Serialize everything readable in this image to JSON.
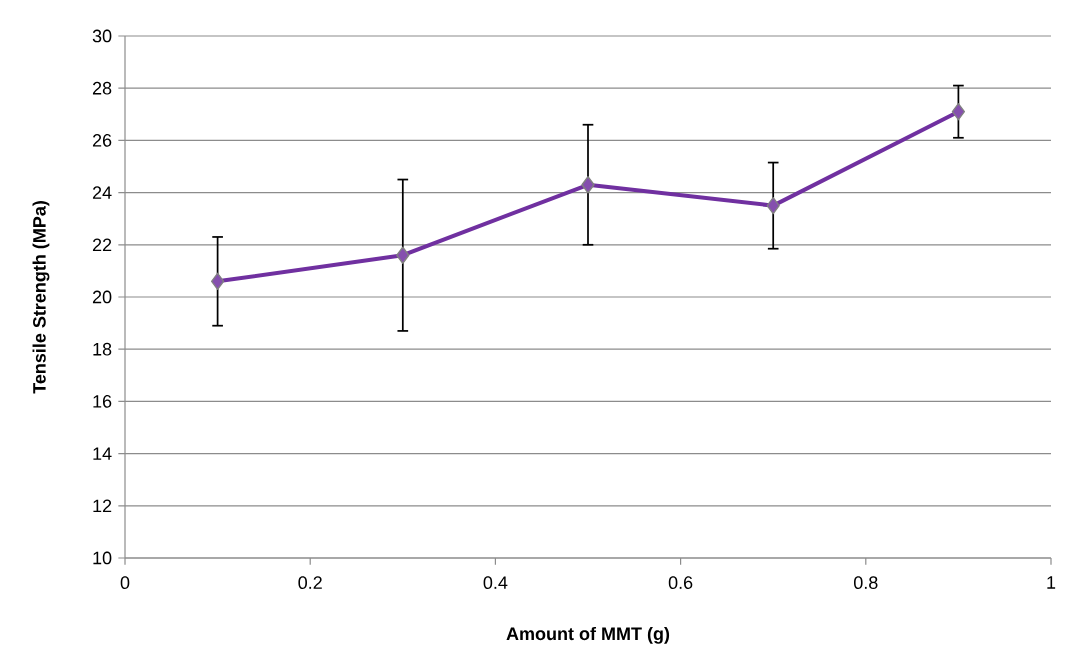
{
  "chart_data": {
    "type": "line",
    "xlabel": "Amount of MMT (g)",
    "ylabel": "Tensile Strength (MPa)",
    "x": [
      0.1,
      0.3,
      0.5,
      0.7,
      0.9
    ],
    "series": [
      {
        "color": "#7030a0",
        "values": [
          20.6,
          21.6,
          24.3,
          23.5,
          27.1
        ],
        "errors": [
          1.7,
          2.9,
          2.3,
          1.65,
          1.0
        ]
      }
    ],
    "xlim": [
      0,
      1
    ],
    "xticks": [
      0,
      0.2,
      0.4,
      0.6,
      0.8,
      1
    ],
    "ylim": [
      10,
      30
    ],
    "yticks": [
      10,
      12,
      14,
      16,
      18,
      20,
      22,
      24,
      26,
      28,
      30
    ],
    "grid": "y",
    "marker": "diamond",
    "line_style": "solid"
  }
}
